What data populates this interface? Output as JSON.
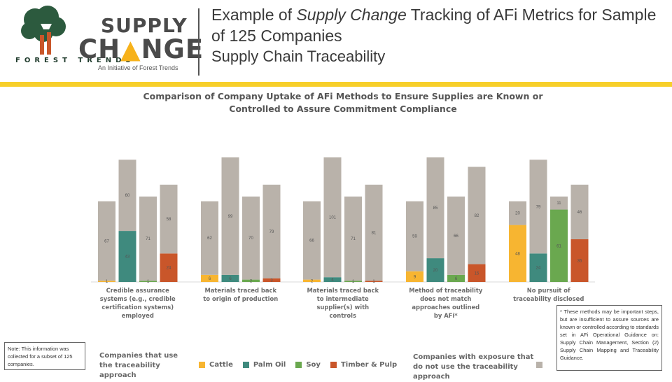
{
  "header": {
    "org_name": "FOREST TRENDS",
    "logo_line1": "SUPPLY",
    "logo_line2_a": "CH",
    "logo_line2_b": "NGE",
    "logo_tagline": "An Initiative of Forest Trends",
    "title_part1": "Example of ",
    "title_italic": "Supply Change",
    "title_part2": " Tracking of AFi Metrics for Sample of 125 Companies",
    "subtitle": "Supply Chain Traceability"
  },
  "colors": {
    "cattle": "#f7b531",
    "palm_oil": "#3f8a7e",
    "soy": "#6aa84f",
    "timber_pulp": "#c9562a",
    "exposure": "#b9b2aa",
    "accent_bar": "#f7cf2a"
  },
  "chart_data": {
    "type": "bar",
    "title_line1": "Comparison of Company Uptake of AFi Methods to Ensure Supplies are Known or",
    "title_line2": "Controlled to Assure Commitment Compliance",
    "ylim": [
      0,
      125
    ],
    "commodities": [
      "Cattle",
      "Palm Oil",
      "Soy",
      "Timber & Pulp"
    ],
    "groups": [
      {
        "label_lines": [
          "Credible assurance",
          "systems (e.g., credible",
          "certification systems)",
          "employed"
        ],
        "use": [
          1,
          43,
          1,
          24
        ],
        "exposure": [
          67,
          60,
          71,
          58
        ]
      },
      {
        "label_lines": [
          "Materials traced back",
          "to origin of production"
        ],
        "use": [
          6,
          6,
          2,
          3
        ],
        "exposure": [
          62,
          99,
          70,
          79
        ]
      },
      {
        "label_lines": [
          "Materials traced back",
          "to intermediate",
          "supplier(s) with",
          "controls"
        ],
        "use": [
          2,
          4,
          1,
          1
        ],
        "exposure": [
          66,
          101,
          71,
          81
        ]
      },
      {
        "label_lines": [
          "Method of traceability",
          "does not match",
          "approaches outlined",
          "by AFi*"
        ],
        "use": [
          9,
          20,
          6,
          15
        ],
        "exposure": [
          59,
          85,
          66,
          82
        ]
      },
      {
        "label_lines": [
          "No pursuit of",
          "traceability disclosed"
        ],
        "use": [
          48,
          24,
          61,
          36
        ],
        "exposure": [
          20,
          79,
          11,
          46
        ]
      }
    ]
  },
  "legend": {
    "use_label": "Companies that use the traceability approach",
    "exposure_label": "Companies with exposure that do not use the traceability approach",
    "items": [
      "Cattle",
      "Palm Oil",
      "Soy",
      "Timber & Pulp"
    ]
  },
  "notes": {
    "left": "Note: This information was collected for a subset of 125 companies.",
    "right": "* These methods may be important steps, but are insufficient to assure sources are known or controlled according to standards set in AFi Operational Guidance on: Supply Chain Management, Section (2) Supply Chain Mapping and Traceability Guidance."
  }
}
